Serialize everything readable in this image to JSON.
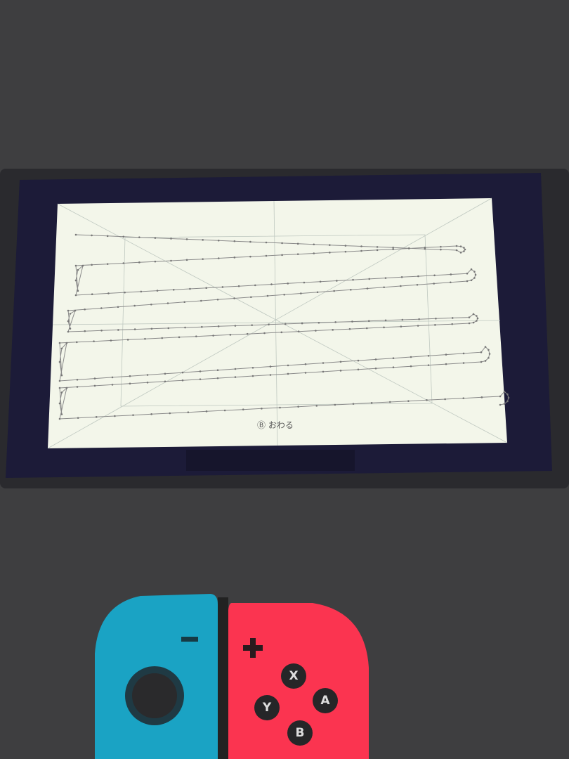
{
  "screen": {
    "exit_label": "Ⓑ おわる",
    "background": "#f3f6ea",
    "trace_color": "#7a7a7a"
  },
  "device": {
    "bezel_color": "#1e1e2a",
    "left_joycon_color": "#1aa3c4",
    "right_joycon_color": "#fb3450"
  },
  "right_joycon": {
    "buttons": [
      "X",
      "Y",
      "A",
      "B"
    ],
    "plus": "+"
  },
  "left_joycon": {
    "minus": "−"
  }
}
